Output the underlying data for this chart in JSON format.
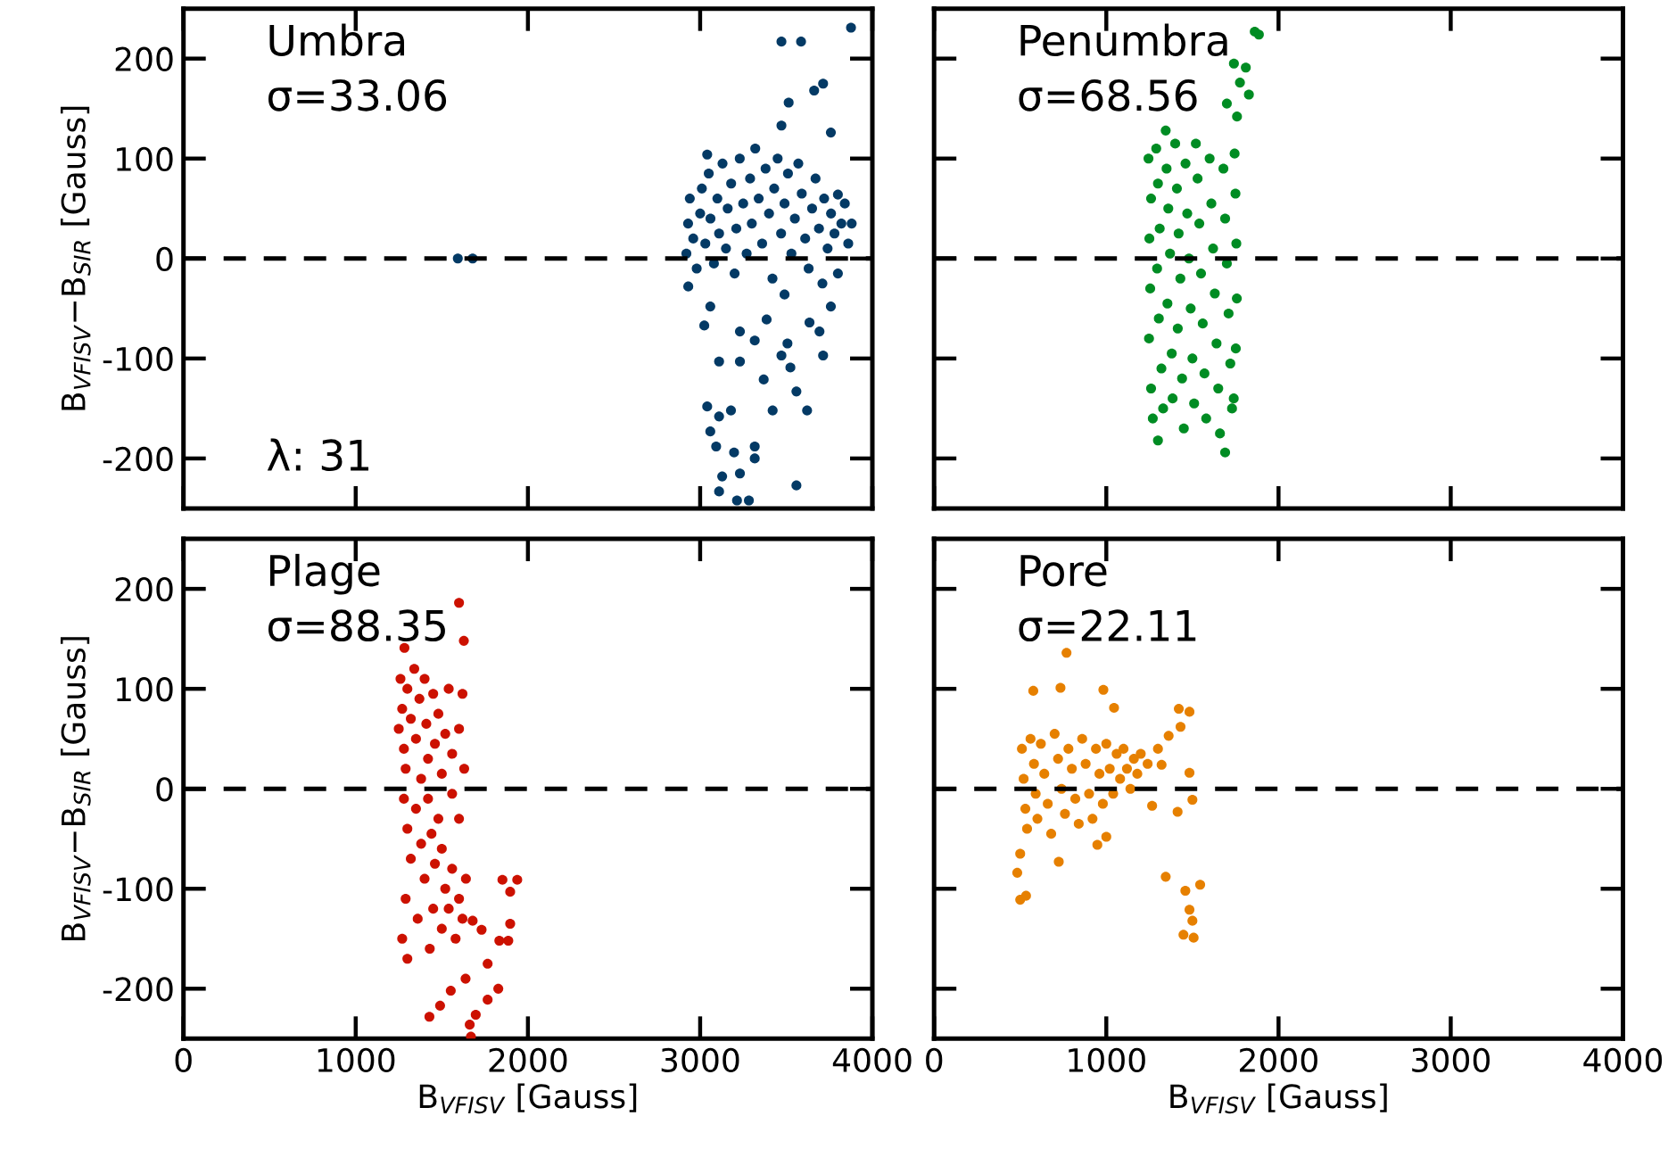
{
  "chart_data": [
    {
      "type": "scatter",
      "ylabel": "B$_{VFISV}$−B$_{SIR}$ [Gauss]",
      "xlim": [
        0,
        4000
      ],
      "ylim": [
        -250,
        250
      ],
      "xticks": [
        0,
        1000,
        2000,
        3000,
        4000
      ],
      "yticks": [
        -200,
        -100,
        0,
        100,
        200
      ],
      "tick_labels": "y",
      "marker": "circle",
      "grid": false,
      "annotations": [
        "Umbra",
        "σ=33.06",
        "λ: 31"
      ],
      "ref_lines": [
        {
          "axis": "y",
          "value": 0,
          "color": "#000000",
          "line_style": "dashed"
        }
      ],
      "series": [
        {
          "color": "#043a65",
          "x": [
            2920,
            2930,
            2940,
            2960,
            2980,
            3000,
            3010,
            3030,
            3050,
            3060,
            3080,
            3100,
            3110,
            3130,
            3150,
            3160,
            3180,
            3200,
            3210,
            3230,
            3250,
            3270,
            3290,
            3300,
            3320,
            3340,
            3360,
            3380,
            3400,
            3420,
            3430,
            3450,
            3470,
            3490,
            3510,
            3530,
            3550,
            3570,
            3590,
            3610,
            3630,
            3650,
            3670,
            3690,
            3710,
            3720,
            3740,
            3760,
            3780,
            3800,
            3820,
            3840,
            3860,
            3880,
            3472,
            3586,
            3876,
            3714,
            3662,
            3514,
            3472,
            3759,
            3041,
            3800,
            2931,
            3059,
            3024,
            3231,
            3110,
            3231,
            3041,
            3110,
            3179,
            3059,
            3093,
            3197,
            3128,
            3231,
            3214,
            3283,
            3110,
            3317,
            3421,
            3369,
            3472,
            3524,
            3559,
            3621,
            3714,
            3559,
            3386,
            3507,
            3693,
            3635,
            3759,
            3317,
            3317,
            3490,
            1679,
            1593
          ],
          "values": [
            5,
            35,
            60,
            20,
            -10,
            45,
            70,
            15,
            85,
            40,
            -5,
            60,
            25,
            95,
            10,
            50,
            75,
            -15,
            30,
            100,
            55,
            5,
            80,
            35,
            110,
            60,
            15,
            90,
            45,
            -20,
            70,
            100,
            25,
            55,
            85,
            5,
            40,
            95,
            65,
            20,
            -10,
            50,
            80,
            30,
            -25,
            60,
            10,
            45,
            25,
            -15,
            35,
            55,
            15,
            35,
            217,
            217,
            231,
            175,
            168,
            156,
            133,
            126,
            104,
            64,
            -28,
            -48,
            -67,
            -73,
            -103,
            -103,
            -148,
            -158,
            -152,
            -173,
            -188,
            -194,
            -218,
            -215,
            -242,
            -242,
            -233,
            -188,
            -152,
            -121,
            -97,
            -109,
            -133,
            -152,
            -97,
            -227,
            -61,
            -85,
            -73,
            -64,
            -48,
            -200,
            -82,
            -36,
            0,
            0
          ]
        }
      ]
    },
    {
      "type": "scatter",
      "xlim": [
        0,
        4000
      ],
      "ylim": [
        -250,
        250
      ],
      "xticks": [
        0,
        1000,
        2000,
        3000,
        4000
      ],
      "yticks": [
        -200,
        -100,
        0,
        100,
        200
      ],
      "tick_labels": false,
      "marker": "circle",
      "grid": false,
      "annotations": [
        "Penumbra",
        "σ=68.56"
      ],
      "ref_lines": [
        {
          "axis": "y",
          "value": 0,
          "color": "#000000",
          "line_style": "dashed"
        }
      ],
      "series": [
        {
          "color": "#008c23",
          "x": [
            1245,
            1260,
            1250,
            1255,
            1248,
            1260,
            1270,
            1290,
            1300,
            1310,
            1295,
            1305,
            1320,
            1330,
            1350,
            1360,
            1370,
            1355,
            1380,
            1385,
            1400,
            1410,
            1420,
            1430,
            1415,
            1440,
            1450,
            1460,
            1470,
            1480,
            1490,
            1500,
            1510,
            1520,
            1530,
            1540,
            1550,
            1560,
            1570,
            1580,
            1600,
            1610,
            1620,
            1630,
            1640,
            1650,
            1660,
            1680,
            1690,
            1700,
            1710,
            1720,
            1730,
            1745,
            1750,
            1755,
            1758,
            1752,
            1740,
            1862,
            1886,
            1741,
            1810,
            1776,
            1828,
            1700,
            1759,
            1690,
            1300,
            1345
          ],
          "values": [
            100,
            60,
            20,
            -30,
            -80,
            -130,
            -160,
            110,
            75,
            30,
            -10,
            -60,
            -110,
            -150,
            90,
            50,
            5,
            -45,
            -95,
            -140,
            115,
            70,
            25,
            -20,
            -70,
            -120,
            -170,
            95,
            45,
            0,
            -50,
            -100,
            -145,
            115,
            80,
            35,
            -15,
            -65,
            -115,
            -160,
            100,
            55,
            10,
            -35,
            -85,
            -130,
            -175,
            90,
            40,
            -5,
            -55,
            -105,
            -150,
            105,
            65,
            15,
            -40,
            -90,
            -140,
            227,
            224,
            195,
            191,
            176,
            164,
            155,
            142,
            -194,
            -182,
            128
          ]
        }
      ]
    },
    {
      "type": "scatter",
      "xlabel": "B$_{VFISV}$ [Gauss]",
      "ylabel": "B$_{VFISV}$−B$_{SIR}$ [Gauss]",
      "xlim": [
        0,
        4000
      ],
      "ylim": [
        -250,
        250
      ],
      "xticks": [
        0,
        1000,
        2000,
        3000,
        4000
      ],
      "yticks": [
        -200,
        -100,
        0,
        100,
        200
      ],
      "marker": "circle",
      "grid": false,
      "annotations": [
        "Plage",
        "σ=88.35"
      ],
      "ref_lines": [
        {
          "axis": "y",
          "value": 0,
          "color": "#000000",
          "line_style": "dashed"
        }
      ],
      "series": [
        {
          "color": "#cc1100",
          "x": [
            1260,
            1270,
            1250,
            1280,
            1300,
            1320,
            1290,
            1340,
            1350,
            1370,
            1380,
            1400,
            1410,
            1420,
            1450,
            1460,
            1480,
            1500,
            1520,
            1540,
            1560,
            1600,
            1620,
            1630,
            1280,
            1300,
            1320,
            1290,
            1270,
            1300,
            1350,
            1380,
            1400,
            1360,
            1420,
            1440,
            1460,
            1450,
            1430,
            1480,
            1500,
            1520,
            1500,
            1540,
            1560,
            1580,
            1600,
            1620,
            1640,
            1600,
            1560,
            1600,
            1628,
            1283,
            1852,
            1938,
            1897,
            1897,
            1886,
            1834,
            1766,
            1828,
            1766,
            1697,
            1662,
            1669,
            1638,
            1552,
            1490,
            1428,
            1731,
            1679
          ],
          "values": [
            110,
            80,
            60,
            40,
            100,
            70,
            20,
            120,
            50,
            90,
            10,
            110,
            65,
            30,
            95,
            45,
            75,
            15,
            55,
            100,
            35,
            60,
            95,
            20,
            -10,
            -40,
            -70,
            -110,
            -150,
            -170,
            -20,
            -55,
            -90,
            -130,
            -10,
            -45,
            -75,
            -120,
            -160,
            -30,
            -60,
            -100,
            -140,
            -120,
            -80,
            -150,
            -110,
            -130,
            -90,
            -30,
            -5,
            186,
            148,
            141,
            -91,
            -91,
            -103,
            -135,
            -152,
            -152,
            -175,
            -200,
            -211,
            -226,
            -236,
            -248,
            -190,
            -202,
            -217,
            -228,
            -141,
            -132
          ]
        }
      ]
    },
    {
      "type": "scatter",
      "xlabel": "B$_{VFISV}$ [Gauss]",
      "xlim": [
        0,
        4000
      ],
      "ylim": [
        -250,
        250
      ],
      "xticks": [
        0,
        1000,
        2000,
        3000,
        4000
      ],
      "yticks": [
        -200,
        -100,
        0,
        100,
        200
      ],
      "tick_labels": "x",
      "marker": "circle",
      "grid": false,
      "annotations": [
        "Pore",
        "σ=22.11"
      ],
      "ref_lines": [
        {
          "axis": "y",
          "value": 0,
          "color": "#000000",
          "line_style": "dashed"
        }
      ],
      "series": [
        {
          "color": "#e68000",
          "x": [
            510,
            520,
            530,
            540,
            560,
            580,
            590,
            600,
            620,
            640,
            660,
            680,
            700,
            720,
            740,
            760,
            780,
            800,
            820,
            840,
            860,
            880,
            900,
            920,
            940,
            960,
            980,
            1000,
            1020,
            1040,
            1060,
            1080,
            1100,
            1120,
            1140,
            1160,
            1180,
            1200,
            1240,
            1300,
            769,
            734,
            983,
            576,
            1045,
            1421,
            1483,
            500,
            534,
            1345,
            1459,
            1545,
            1483,
            1500,
            1448,
            1507,
            500,
            724,
            483,
            948,
            1000,
            1266,
            1414,
            1500,
            1483,
            1321,
            1431,
            1362
          ],
          "values": [
            40,
            10,
            -20,
            -40,
            50,
            25,
            -5,
            -30,
            45,
            15,
            -15,
            -45,
            55,
            30,
            0,
            -25,
            40,
            20,
            -10,
            -35,
            50,
            25,
            -5,
            -30,
            40,
            15,
            -15,
            45,
            20,
            -5,
            35,
            10,
            40,
            20,
            0,
            30,
            15,
            35,
            25,
            40,
            136,
            101,
            99,
            98,
            81,
            80,
            77,
            -111,
            -107,
            -88,
            -102,
            -96,
            -121,
            -132,
            -146,
            -149,
            -65,
            -73,
            -84,
            -56,
            -48,
            -17,
            -23,
            -11,
            16,
            24,
            62,
            53
          ]
        }
      ]
    }
  ]
}
